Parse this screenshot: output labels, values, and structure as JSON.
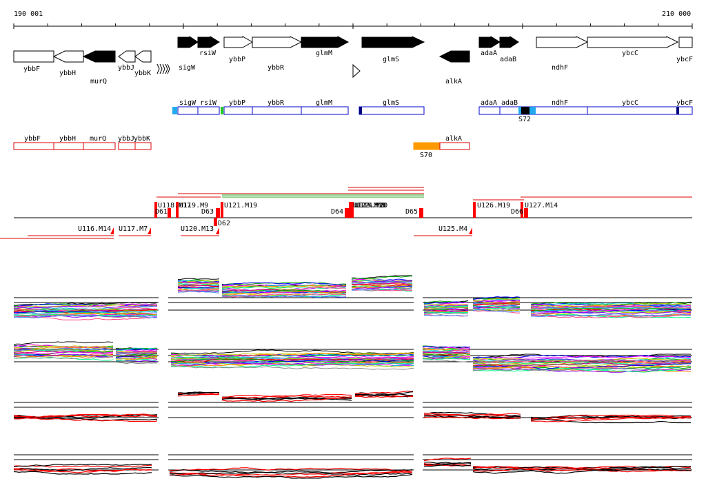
{
  "coords": {
    "start_label": "190 001",
    "end_label": "210 000"
  },
  "gene_labels": {
    "ybbF": "ybbF",
    "ybbH": "ybbH",
    "murQ": "murQ",
    "ybbJ": "ybbJ",
    "ybbK": "ybbK",
    "sigW": "sigW",
    "rsiW": "rsiW",
    "ybbP": "ybbP",
    "ybbR": "ybbR",
    "glmM": "glmM",
    "glmS": "glmS",
    "alkA": "alkA",
    "adaA": "adaA",
    "adaB": "adaB",
    "ndhF": "ndhF",
    "ybcC": "ybcC",
    "ybcF": "ybcF"
  },
  "track_labels": {
    "S72": "S72",
    "S70": "S70"
  },
  "segments": {
    "U118": "U118.M17",
    "U119": "U119.M9",
    "U121": "U121.M19",
    "U116": "U116.M14",
    "U117": "U117.M7",
    "U120": "U120.M13",
    "D61": "D61",
    "D63": "D63",
    "D62": "D62",
    "D64": "D64",
    "U122": "U122.M18",
    "U123": "U123.M20",
    "U124": "U124.M8",
    "D65": "D65",
    "U125": "U125.M4",
    "U126": "U126.M19",
    "D66": "D66",
    "U127": "U127.M14"
  },
  "colors": {
    "gene_fill": "#000000",
    "operon_border": "#0000cc",
    "operon_light": "#22aaee",
    "operon_dark": "#000080",
    "start_green": "#22cc22",
    "lower_border": "#dd0000",
    "orange_block": "#ff9900",
    "segment_red": "#ff0000",
    "profile_red": "#ff0000",
    "profile_black": "#000000"
  }
}
